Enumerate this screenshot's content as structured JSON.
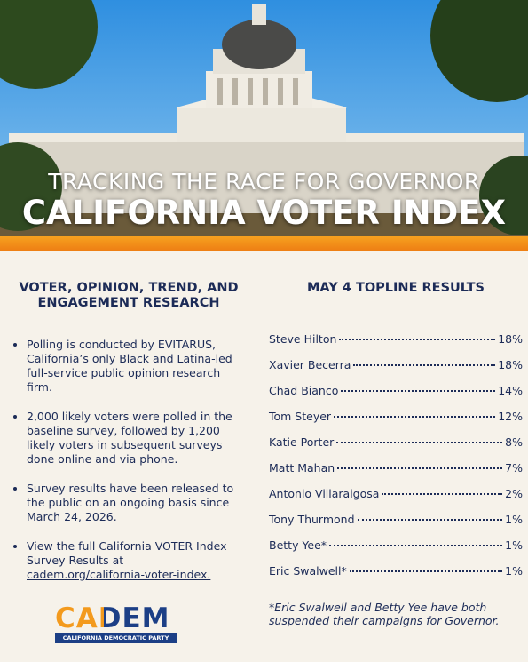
{
  "header": {
    "subtitle": "TRACKING THE RACE FOR GOVERNOR",
    "title": "CALIFORNIA VOTER INDEX"
  },
  "left": {
    "heading": "VOTER, OPINION, TREND, AND ENGAGEMENT RESEARCH",
    "bullets": [
      "Polling is conducted by EVITARUS, California’s only Black and Latina-led full-service public opinion research firm.",
      "2,000 likely voters were polled in the baseline survey, followed by 1,200 likely voters in subsequent surveys done online and via phone.",
      "Survey results have been released to the public on an ongoing basis since March 24, 2026."
    ],
    "link_bullet": {
      "text": "View the full California VOTER Index Survey Results at",
      "link": "cadem.org/california-voter-index."
    }
  },
  "right": {
    "heading": "MAY 4 TOPLINE RESULTS",
    "results": [
      {
        "name": "Steve Hilton",
        "value": "18%"
      },
      {
        "name": "Xavier Becerra",
        "value": "18%"
      },
      {
        "name": "Chad Bianco",
        "value": "14%"
      },
      {
        "name": "Tom Steyer",
        "value": "12%"
      },
      {
        "name": "Katie Porter",
        "value": "8%"
      },
      {
        "name": "Matt Mahan",
        "value": "7%"
      },
      {
        "name": "Antonio Villaraigosa",
        "value": "2%"
      },
      {
        "name": "Tony Thurmond",
        "value": "1%"
      },
      {
        "name": "Betty Yee*",
        "value": "1%"
      },
      {
        "name": "Eric Swalwell*",
        "value": "1%"
      }
    ],
    "footnote": "*Eric Swalwell and Betty Yee have both suspended their campaigns for Governor."
  },
  "logo": {
    "name": "CADEM",
    "tagline": "CALIFORNIA DEMOCRATIC PARTY"
  }
}
